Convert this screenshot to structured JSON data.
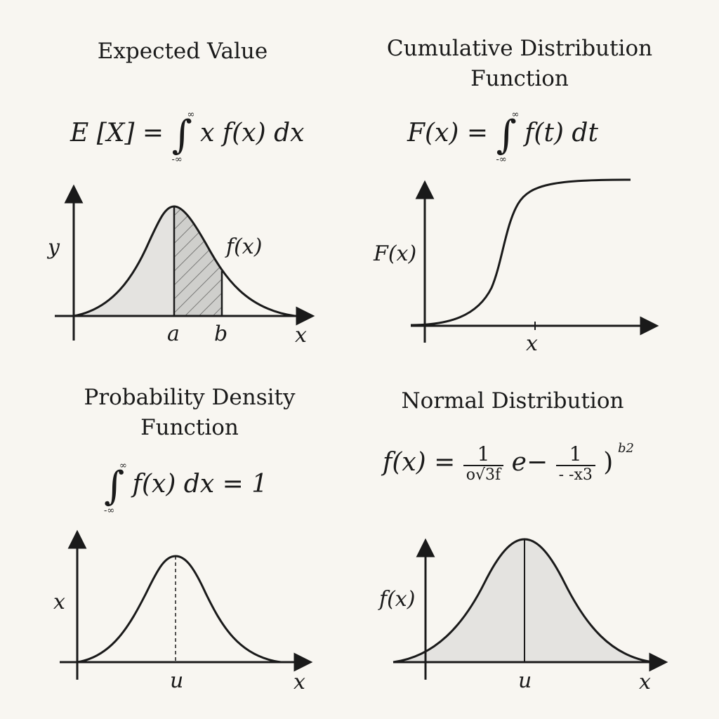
{
  "panels": {
    "expected_value": {
      "title": "Expected Value",
      "formula_lhs": "E [X] =",
      "formula_rhs": "x f(x) dx",
      "int_upper": "∞",
      "int_lower": "-∞",
      "y_label": "y",
      "curve_label": "f(x)",
      "tick_a": "a",
      "tick_b": "b",
      "x_label": "x"
    },
    "cdf": {
      "title_line1": "Cumulative Distribution",
      "title_line2": "Function",
      "formula_lhs": "F(x) =",
      "formula_rhs": "f(t) dt",
      "int_upper": "∞",
      "int_lower": "-∞",
      "y_label": "F(x)",
      "x_label": "x"
    },
    "pdf": {
      "title_line1": "Probability Density",
      "title_line2": "Function",
      "formula_rhs": "f(x) dx = 1",
      "int_upper": "∞",
      "int_lower": "-∞",
      "y_label": "x",
      "tick_mu": "u",
      "x_label": "x"
    },
    "normal": {
      "title": "Normal Distribution",
      "formula_lhs": "f(x) =",
      "frac1_num": "1",
      "frac1_den": "o√3f",
      "exp_e": "e",
      "exp_minus": "−",
      "frac2_num": "1",
      "frac2_den": "- -x3",
      "close_paren": ")",
      "exponent": "b2",
      "y_label": "f(x)",
      "tick_mu": "u",
      "x_label": "x"
    }
  },
  "colors": {
    "ink": "#1a1a1a",
    "fill_light": "#e4e3e0",
    "fill_hatch": "#c9c9c6",
    "background": "#f8f6f1"
  }
}
